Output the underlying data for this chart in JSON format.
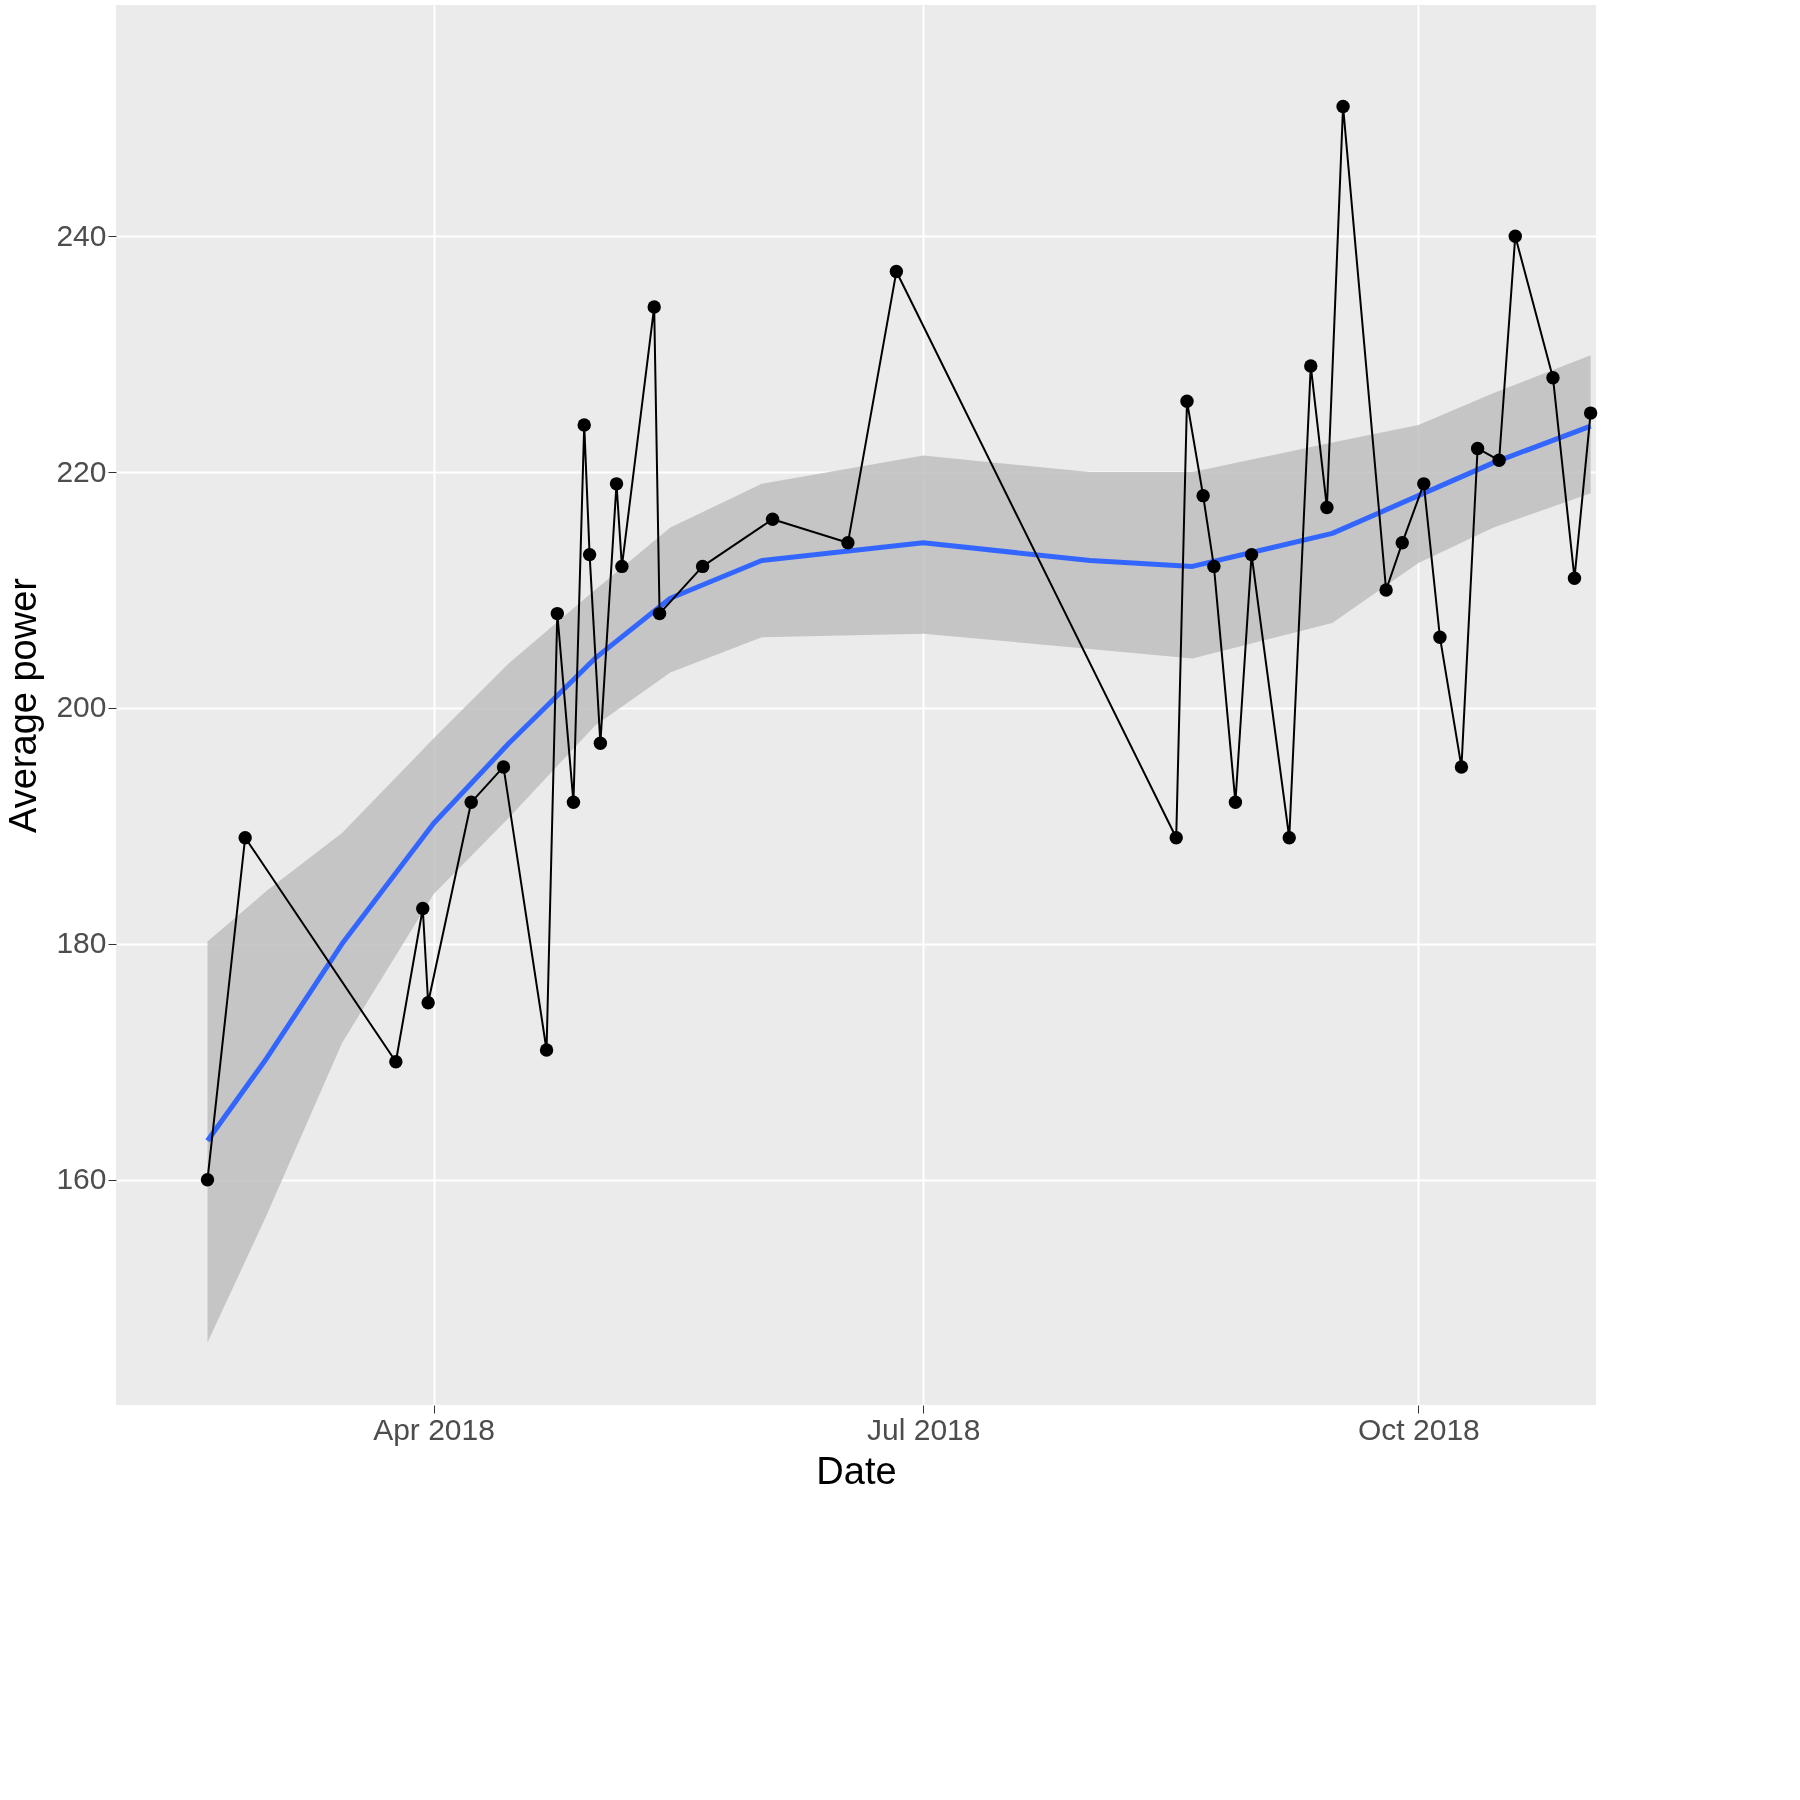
{
  "chart_data": {
    "type": "line",
    "xlabel": "Date",
    "ylabel": "Average power",
    "xlim": [
      "2018-02-01",
      "2018-11-03"
    ],
    "xticks": [
      {
        "value": "2018-04-01",
        "label": "Apr 2018"
      },
      {
        "value": "2018-07-01",
        "label": "Jul 2018"
      },
      {
        "value": "2018-10-01",
        "label": "Oct 2018"
      }
    ],
    "ylim": [
      140.9,
      259.6
    ],
    "yticks": [
      160,
      180,
      200,
      220,
      240
    ],
    "grid": true,
    "series": [
      {
        "color": "#3366ff",
        "marker": "none",
        "lower": [
          146.2,
          157,
          171.6,
          184.2,
          190.7,
          198.5,
          203,
          206,
          206.3,
          205,
          204.2,
          207.2,
          212.3,
          215.3,
          218.2
        ],
        "upper": [
          180.2,
          184.5,
          189.4,
          197.4,
          203.8,
          210,
          215.3,
          219,
          221.4,
          220,
          220,
          222.5,
          224,
          226.7,
          229.9
        ],
        "x": [
          "2018-02-18",
          "2018-03-01",
          "2018-03-15",
          "2018-04-01",
          "2018-04-15",
          "2018-05-01",
          "2018-05-15",
          "2018-06-01",
          "2018-07-01",
          "2018-08-01",
          "2018-08-20",
          "2018-09-15",
          "2018-10-01",
          "2018-10-15",
          "2018-11-02"
        ],
        "values": [
          163.3,
          170.3,
          180,
          190.2,
          197,
          204.2,
          209.3,
          212.5,
          214,
          212.5,
          212,
          214.8,
          218,
          220.8,
          223.9
        ]
      },
      {
        "color": "#000000",
        "marker": "circle",
        "x": [
          "2018-02-18",
          "2018-02-25",
          "2018-03-25",
          "2018-03-30",
          "2018-03-31",
          "2018-04-08",
          "2018-04-14",
          "2018-04-22",
          "2018-04-24",
          "2018-04-27",
          "2018-04-29",
          "2018-04-30",
          "2018-05-02",
          "2018-05-05",
          "2018-05-06",
          "2018-05-12",
          "2018-05-13",
          "2018-05-21",
          "2018-06-03",
          "2018-06-17",
          "2018-06-26",
          "2018-08-17",
          "2018-08-19",
          "2018-08-22",
          "2018-08-24",
          "2018-08-28",
          "2018-08-31",
          "2018-09-07",
          "2018-09-11",
          "2018-09-14",
          "2018-09-17",
          "2018-09-25",
          "2018-09-28",
          "2018-10-02",
          "2018-10-05",
          "2018-10-09",
          "2018-10-12",
          "2018-10-16",
          "2018-10-19",
          "2018-10-26",
          "2018-10-30",
          "2018-11-02"
        ],
        "values": [
          160,
          189,
          170,
          183,
          175,
          192,
          195,
          171,
          208,
          192,
          224,
          213,
          197,
          219,
          212,
          234,
          208,
          212,
          216,
          214,
          237,
          189,
          226,
          218,
          212,
          192,
          213,
          189,
          229,
          217,
          251,
          210,
          214,
          219,
          206,
          195,
          222,
          221,
          240,
          228,
          211,
          225
        ]
      }
    ]
  }
}
